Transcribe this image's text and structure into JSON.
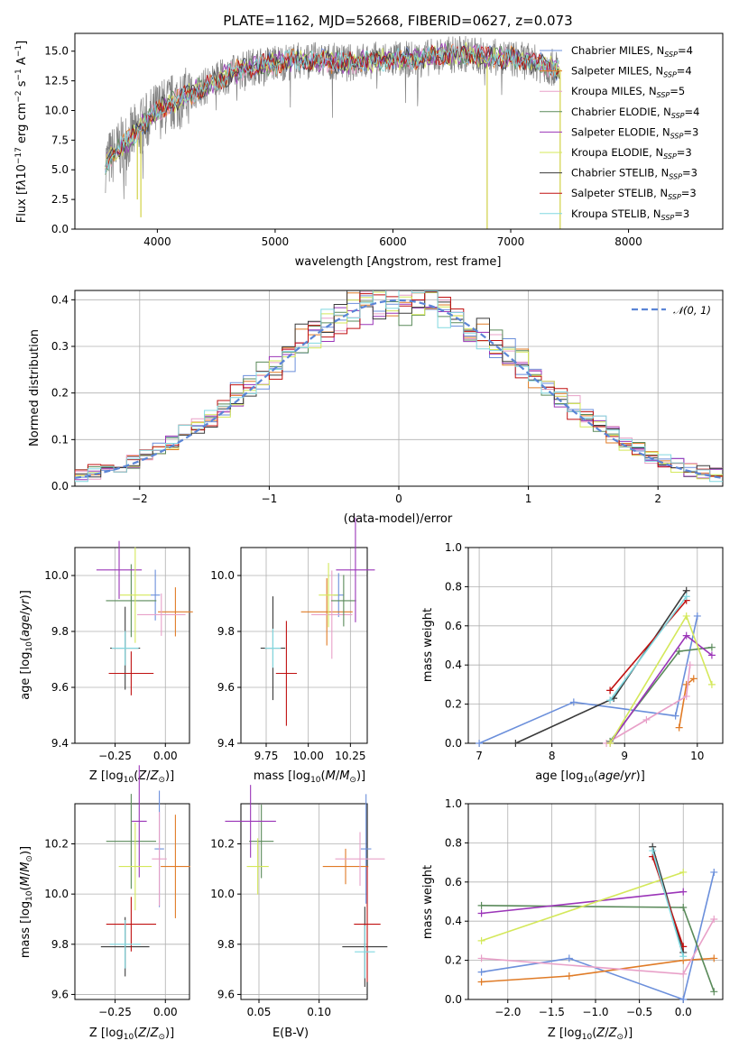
{
  "colors": [
    "#6b8fdb",
    "#e07b26",
    "#e8a0c8",
    "#5a8a5a",
    "#9b35b8",
    "#d4e85a",
    "#3a3a3a",
    "#c01010",
    "#80d8e0"
  ],
  "chart_data": [
    {
      "id": "spectrum",
      "type": "line",
      "title": "PLATE=1162, MJD=52668, FIBERID=0627, z=0.073",
      "xlabel": "wavelength [Angstrom, rest frame]",
      "ylabel": "Flux [f_λ 10^-17 erg cm^-2 s^-1 A^-1]",
      "xlim": [
        3300,
        8800
      ],
      "ylim": [
        0,
        16.5
      ],
      "xticks": [
        "4000",
        "5000",
        "6000",
        "7000",
        "8000"
      ],
      "yticks": [
        "0.0",
        "2.5",
        "5.0",
        "7.5",
        "10.0",
        "12.5",
        "15.0"
      ],
      "legend_position": "right",
      "series": [
        {
          "name": "Chabrier MILES, N_SSP=4"
        },
        {
          "name": "Salpeter MILES, N_SSP=4"
        },
        {
          "name": "Kroupa MILES, N_SSP=5"
        },
        {
          "name": "Chabrier ELODIE, N_SSP=4"
        },
        {
          "name": "Salpeter ELODIE, N_SSP=3"
        },
        {
          "name": "Kroupa ELODIE, N_SSP=3"
        },
        {
          "name": "Chabrier STELIB, N_SSP=3"
        },
        {
          "name": "Salpeter STELIB, N_SSP=3"
        },
        {
          "name": "Kroupa STELIB, N_SSP=3"
        }
      ],
      "continuum": {
        "x": [
          3550,
          3700,
          3850,
          4000,
          4200,
          4400,
          4600,
          4800,
          5000,
          5200,
          5400,
          5600,
          5800,
          6000,
          6200,
          6400,
          6600,
          6800,
          7000,
          7200,
          7400
        ],
        "y": [
          5.5,
          7.0,
          8.5,
          10.0,
          11.0,
          12.0,
          13.0,
          13.7,
          14.0,
          14.2,
          14.2,
          14.0,
          14.2,
          14.3,
          14.3,
          14.6,
          14.8,
          14.5,
          14.4,
          14.0,
          13.5
        ]
      }
    },
    {
      "id": "histogram",
      "type": "bar",
      "xlabel": "(data-model)/error",
      "ylabel": "Normed distribution",
      "xlim": [
        -2.5,
        2.5
      ],
      "ylim": [
        0,
        0.42
      ],
      "xticks": [
        "−2",
        "−1",
        "0",
        "1",
        "2"
      ],
      "yticks": [
        "0.0",
        "0.1",
        "0.2",
        "0.3",
        "0.4"
      ],
      "legend": "𝒩(0, 1)",
      "legend_position": "top-right",
      "grid": true
    },
    {
      "id": "age-Z",
      "type": "scatter",
      "xlabel": "Z [log10(Z/Z⊙)]",
      "ylabel": "age  [log10(age/yr)]",
      "xlim": [
        -0.45,
        0.12
      ],
      "ylim": [
        9.4,
        10.1
      ],
      "xticks": [
        "−0.25",
        "0.00"
      ],
      "yticks": [
        "9.4",
        "9.6",
        "9.8",
        "10.0"
      ],
      "points": [
        {
          "x": -0.05,
          "y": 9.93
        },
        {
          "x": 0.05,
          "y": 9.87
        },
        {
          "x": -0.02,
          "y": 9.86
        },
        {
          "x": -0.17,
          "y": 9.91
        },
        {
          "x": -0.23,
          "y": 10.02
        },
        {
          "x": -0.15,
          "y": 9.93
        },
        {
          "x": -0.2,
          "y": 9.74
        },
        {
          "x": -0.17,
          "y": 9.65
        },
        {
          "x": -0.2,
          "y": 9.74
        }
      ]
    },
    {
      "id": "age-mass",
      "type": "scatter",
      "xlabel": "mass [log10(M/M⊙)]",
      "ylabel": "",
      "xlim": [
        9.6,
        10.35
      ],
      "ylim": [
        9.4,
        10.1
      ],
      "xticks": [
        "9.75",
        "10.00",
        "10.25"
      ],
      "yticks": [
        "9.4",
        "9.6",
        "9.8",
        "10.0"
      ],
      "points": [
        {
          "x": 10.18,
          "y": 9.93
        },
        {
          "x": 10.11,
          "y": 9.87
        },
        {
          "x": 10.14,
          "y": 9.86
        },
        {
          "x": 10.21,
          "y": 9.91
        },
        {
          "x": 10.28,
          "y": 10.02
        },
        {
          "x": 10.12,
          "y": 9.93
        },
        {
          "x": 9.79,
          "y": 9.74
        },
        {
          "x": 9.87,
          "y": 9.65
        },
        {
          "x": 9.79,
          "y": 9.74
        }
      ]
    },
    {
      "id": "weight-age",
      "type": "line",
      "xlabel": "age  [log10(age/yr)]",
      "ylabel": "mass weight",
      "xlim": [
        6.85,
        10.35
      ],
      "ylim": [
        0,
        1.0
      ],
      "xticks": [
        "7",
        "8",
        "9",
        "10"
      ],
      "yticks": [
        "0.0",
        "0.2",
        "0.4",
        "0.6",
        "0.8",
        "1.0"
      ],
      "grid": true
    },
    {
      "id": "mass-Z",
      "type": "scatter",
      "xlabel": "Z [log10(Z/Z⊙)]",
      "ylabel": "mass [log10(M/M⊙)]",
      "xlim": [
        -0.45,
        0.12
      ],
      "ylim": [
        9.58,
        10.36
      ],
      "xticks": [
        "−0.25",
        "0.00"
      ],
      "yticks": [
        "9.6",
        "9.8",
        "10.0",
        "10.2"
      ],
      "points": [
        {
          "x": -0.03,
          "y": 10.18
        },
        {
          "x": 0.05,
          "y": 10.11
        },
        {
          "x": -0.03,
          "y": 10.14
        },
        {
          "x": -0.17,
          "y": 10.21
        },
        {
          "x": -0.13,
          "y": 10.29
        },
        {
          "x": -0.15,
          "y": 10.11
        },
        {
          "x": -0.2,
          "y": 9.79
        },
        {
          "x": -0.17,
          "y": 9.88
        },
        {
          "x": -0.2,
          "y": 9.8
        }
      ]
    },
    {
      "id": "mass-EBV",
      "type": "scatter",
      "xlabel": "E(B-V)",
      "ylabel": "",
      "xlim": [
        0.035,
        0.14
      ],
      "ylim": [
        9.58,
        10.36
      ],
      "xticks": [
        "0.05",
        "0.10"
      ],
      "yticks": [
        "9.6",
        "9.8",
        "10.0",
        "10.2"
      ],
      "points": [
        {
          "x": 0.139,
          "y": 10.18
        },
        {
          "x": 0.122,
          "y": 10.11
        },
        {
          "x": 0.134,
          "y": 10.14
        },
        {
          "x": 0.052,
          "y": 10.21
        },
        {
          "x": 0.043,
          "y": 10.29
        },
        {
          "x": 0.049,
          "y": 10.11
        },
        {
          "x": 0.138,
          "y": 9.79
        },
        {
          "x": 0.14,
          "y": 9.88
        },
        {
          "x": 0.138,
          "y": 9.77
        }
      ]
    },
    {
      "id": "weight-Z",
      "type": "line",
      "xlabel": "Z [log10(Z/Z⊙)]",
      "ylabel": "mass weight",
      "xlim": [
        -2.45,
        0.45
      ],
      "ylim": [
        0,
        1.0
      ],
      "xticks": [
        "−2.0",
        "−1.5",
        "−1.0",
        "−0.5",
        "0.0"
      ],
      "yticks": [
        "0.0",
        "0.2",
        "0.4",
        "0.6",
        "0.8",
        "1.0"
      ],
      "grid": true
    }
  ]
}
